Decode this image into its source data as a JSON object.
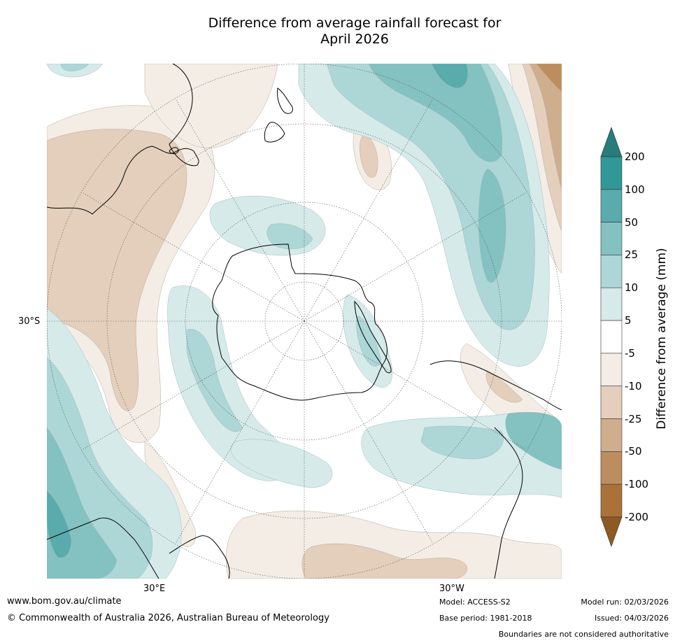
{
  "title_line1": "Difference from average rainfall forecast for",
  "title_line2": "April 2026",
  "map_labels": {
    "lat": "30°S",
    "lon_left": "30°E",
    "lon_right": "30°W"
  },
  "colorbar": {
    "title": "Difference from average (mm)",
    "ticks": [
      "200",
      "100",
      "50",
      "25",
      "10",
      "5",
      "-5",
      "-10",
      "-25",
      "-50",
      "-100",
      "-200"
    ],
    "colors": {
      "over": "#287c7c",
      "wet_200": "#319898",
      "wet_100": "#5aabab",
      "wet_50": "#84c1c1",
      "wet_25": "#add6d6",
      "wet_10": "#d6eaea",
      "neutral": "#ffffff",
      "dry_10": "#f3ede6",
      "dry_25": "#e3cfbc",
      "dry_50": "#cfae8e",
      "dry_100": "#bc8e5f",
      "dry_200": "#aa7239",
      "under": "#8e5a24"
    }
  },
  "footer": {
    "website": "www.bom.gov.au/climate",
    "copyright": "© Commonwealth of Australia 2026, Australian Bureau of Meteorology",
    "model": "Model: ACCESS-S2",
    "base_period": "Base period: 1981-2018",
    "model_run": "Model run: 02/03/2026",
    "issued": "Issued: 04/03/2026",
    "disclaimer": "Boundaries are not considered authoritative"
  }
}
